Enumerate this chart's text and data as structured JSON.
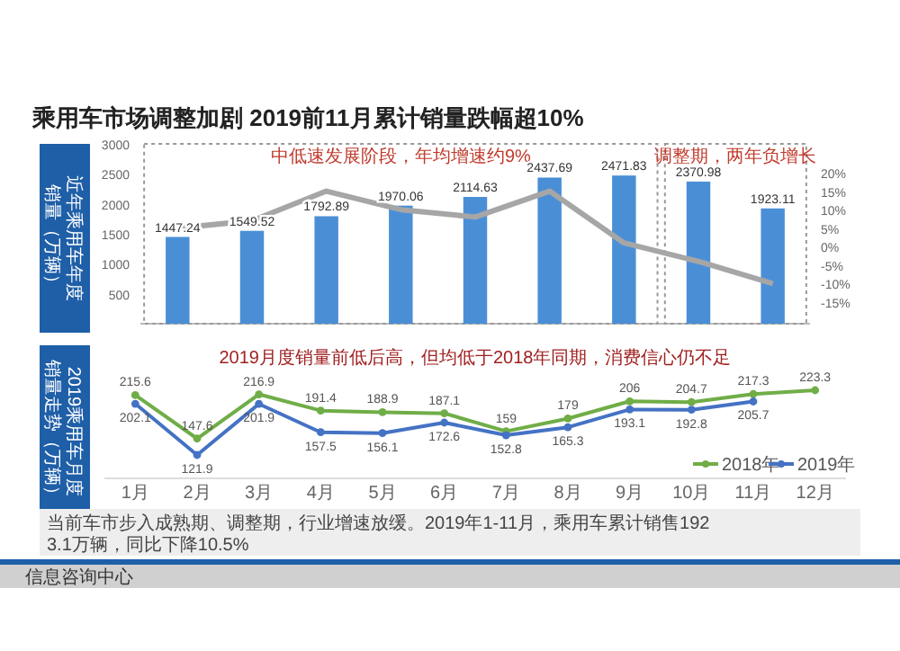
{
  "chart_data": [
    {
      "type": "bar",
      "title": "乘用车市场调整加剧 2019前11月累计销量跌幅超10%",
      "ylabel": "近年乘用车年度销量（万辆）",
      "categories": [
        null,
        null,
        null,
        null,
        null,
        null,
        null,
        null,
        null
      ],
      "series": [
        {
          "type": "bar",
          "color": "#4a8fd6",
          "values": [
            1447.24,
            1549.52,
            1792.89,
            1970.06,
            2114.63,
            2437.69,
            2471.83,
            2370.98,
            1923.11
          ],
          "value_labels": [
            "1447.24",
            "1549.52",
            "1792.89",
            "1970.06",
            "2114.63",
            "2437.69",
            "2471.83",
            "2370.98",
            "1923.11"
          ]
        },
        {
          "type": "line",
          "axis": "y2",
          "color": "#a6a6a6",
          "values": [
            5,
            7,
            15,
            10,
            8,
            15,
            1,
            -4,
            -10
          ]
        }
      ],
      "ylim": [
        0,
        3000
      ],
      "yticks": [
        500,
        1000,
        1500,
        2000,
        2500,
        3000
      ],
      "y2lim": [
        -15,
        20
      ],
      "y2ticks": [
        {
          "value": -15,
          "label": "-15%"
        },
        {
          "value": -10,
          "label": "-10%"
        },
        {
          "value": -5,
          "label": "-5%"
        },
        {
          "value": 0,
          "label": "0%"
        },
        {
          "value": 5,
          "label": "5%"
        },
        {
          "value": 10,
          "label": "10%"
        },
        {
          "value": 15,
          "label": "15%"
        },
        {
          "value": 20,
          "label": "20%"
        }
      ],
      "annotations": [
        "中低速发展阶段，年均增速约9%",
        "调整期，两年负增长"
      ]
    },
    {
      "type": "line",
      "title": "2019月度销量前低后高，但均低于2018年同期，消费信心仍不足",
      "ylabel": "2019乘用车月度销量走势（万辆）",
      "categories": [
        "1月",
        "2月",
        "3月",
        "4月",
        "5月",
        "6月",
        "7月",
        "8月",
        "9月",
        "10月",
        "11月",
        "12月"
      ],
      "series": [
        {
          "name": "2018年",
          "color": "#70ad47",
          "values": [
            215.6,
            147.6,
            216.9,
            191.4,
            188.9,
            187.1,
            159.0,
            179.0,
            206.0,
            204.7,
            217.3,
            223.3
          ]
        },
        {
          "name": "2019年",
          "color": "#4472c4",
          "values": [
            202.1,
            121.9,
            201.9,
            157.5,
            156.1,
            172.6,
            152.8,
            165.3,
            193.1,
            192.8,
            205.7,
            null
          ]
        }
      ],
      "data_labels": true,
      "marker": "circle",
      "legend": "bottom right",
      "annotations": [
        "当前车市步入成熟期、调整期，行业增速放缓。2019年1-11月，乘用车累计销售1923.1万辆，同比下降10.5%",
        "信息咨询中心"
      ]
    }
  ]
}
